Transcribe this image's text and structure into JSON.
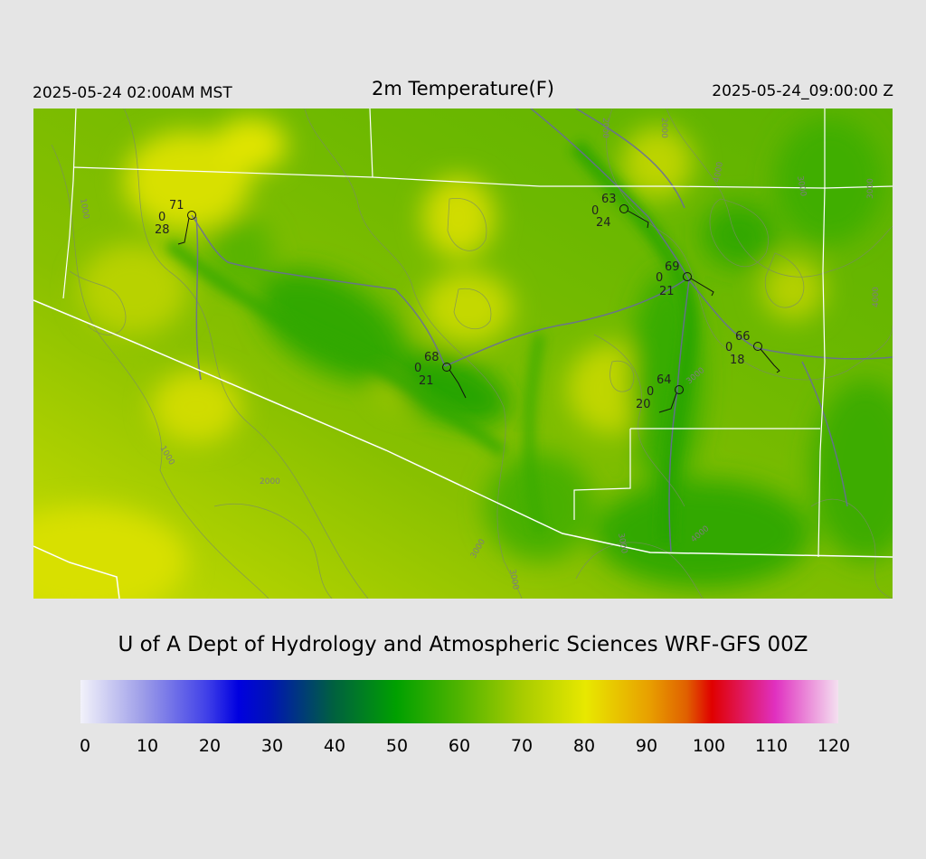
{
  "header": {
    "local_time": "2025-05-24 02:00AM MST",
    "title": "2m Temperature(F)",
    "utc_time": "2025-05-24_09:00:00 Z"
  },
  "credit": "U of A Dept of Hydrology and Atmospheric Sciences WRF-GFS 00Z",
  "colorbar": {
    "ticks": [
      "0",
      "10",
      "20",
      "30",
      "40",
      "50",
      "60",
      "70",
      "80",
      "90",
      "100",
      "110",
      "120"
    ],
    "stops": [
      {
        "value": 0,
        "color": "#f2f2fa"
      },
      {
        "value": 10,
        "color": "#9c9ce8"
      },
      {
        "value": 20,
        "color": "#4040e8"
      },
      {
        "value": 25,
        "color": "#0000e0"
      },
      {
        "value": 30,
        "color": "#0014b4"
      },
      {
        "value": 40,
        "color": "#006040"
      },
      {
        "value": 50,
        "color": "#00a000"
      },
      {
        "value": 60,
        "color": "#50b400"
      },
      {
        "value": 70,
        "color": "#a8cc00"
      },
      {
        "value": 80,
        "color": "#e8e800"
      },
      {
        "value": 90,
        "color": "#e8a000"
      },
      {
        "value": 96,
        "color": "#e06000"
      },
      {
        "value": 100,
        "color": "#e00000"
      },
      {
        "value": 110,
        "color": "#e030c0"
      },
      {
        "value": 120,
        "color": "#f4e0f0"
      }
    ]
  },
  "stations": [
    {
      "id": "st-1",
      "temp": "71",
      "dew": "28",
      "cloud": "0"
    },
    {
      "id": "st-2",
      "temp": "63",
      "dew": "24",
      "cloud": "0"
    },
    {
      "id": "st-3",
      "temp": "69",
      "dew": "21",
      "cloud": "0"
    },
    {
      "id": "st-4",
      "temp": "68",
      "dew": "21",
      "cloud": "0"
    },
    {
      "id": "st-5",
      "temp": "66",
      "dew": "18",
      "cloud": "0"
    },
    {
      "id": "st-6",
      "temp": "64",
      "dew": "20",
      "cloud": "0"
    }
  ],
  "contour_labels": [
    "1000",
    "2000",
    "2000",
    "3000",
    "4000",
    "3000",
    "4000",
    "1000",
    "2000",
    "3000",
    "3000",
    "3000",
    "3000",
    "4000"
  ]
}
